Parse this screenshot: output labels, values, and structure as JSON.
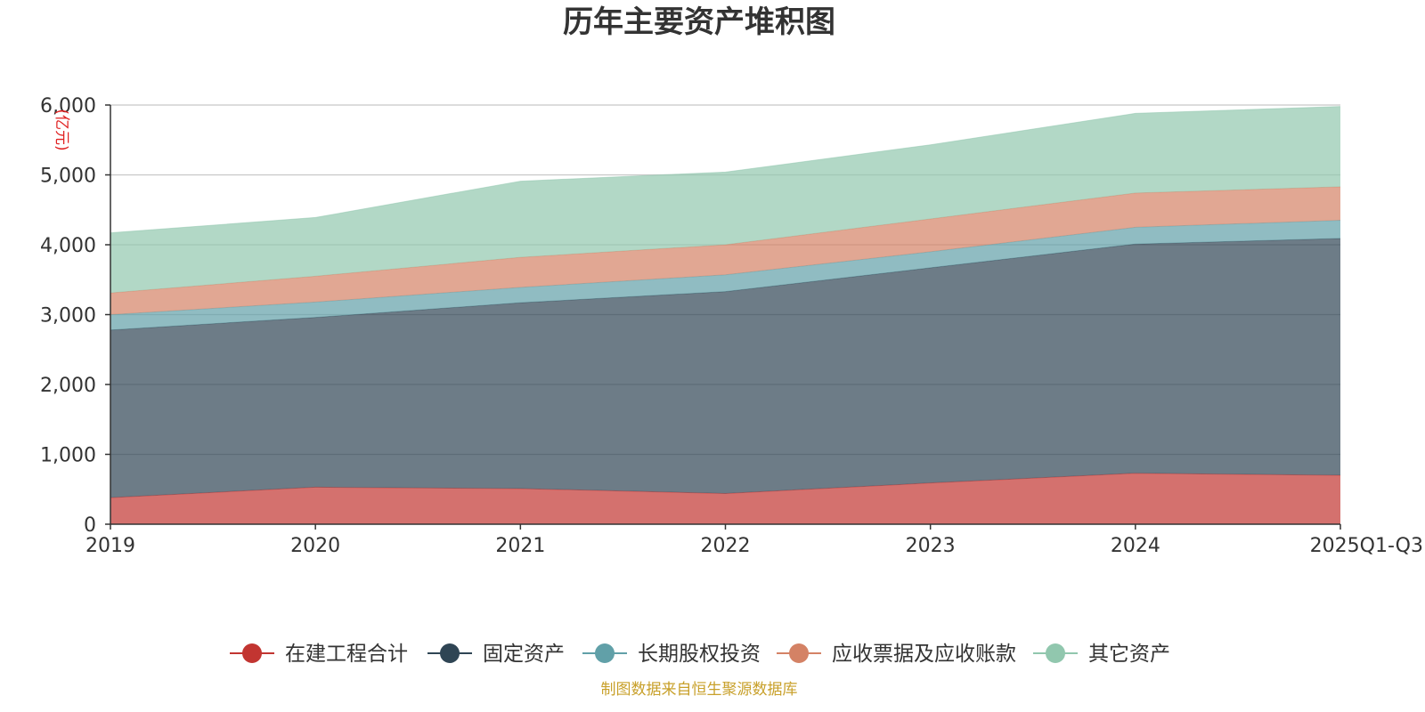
{
  "chart_data": {
    "type": "area",
    "stacked": true,
    "title": "历年主要资产堆积图",
    "unit_label": "亿元",
    "xlabel": "",
    "ylabel": "亿元",
    "ylim": [
      0,
      6000
    ],
    "yticks": [
      0,
      1000,
      2000,
      3000,
      4000,
      5000,
      6000
    ],
    "ytick_labels": [
      "0",
      "1,000",
      "2,000",
      "3,000",
      "4,000",
      "5,000",
      "6,000"
    ],
    "categories": [
      "2019",
      "2020",
      "2021",
      "2022",
      "2023",
      "2024",
      "2025Q1-Q3"
    ],
    "series": [
      {
        "name": "在建工程合计",
        "color": "#c23531",
        "values": [
          380,
          530,
          510,
          440,
          590,
          730,
          700
        ]
      },
      {
        "name": "固定资产",
        "color": "#2f4554",
        "values": [
          2400,
          2430,
          2660,
          2890,
          3080,
          3280,
          3390
        ]
      },
      {
        "name": "长期股权投资",
        "color": "#61a0a8",
        "values": [
          220,
          220,
          220,
          240,
          230,
          240,
          260
        ]
      },
      {
        "name": "应收票据及应收账款",
        "color": "#d48265",
        "values": [
          310,
          370,
          430,
          430,
          470,
          490,
          480
        ]
      },
      {
        "name": "其它资产",
        "color": "#91c7ae",
        "values": [
          860,
          840,
          1090,
          1040,
          1060,
          1140,
          1150
        ]
      }
    ],
    "legend_position": "bottom",
    "grid": true
  },
  "source_note": "制图数据来自恒生聚源数据库"
}
